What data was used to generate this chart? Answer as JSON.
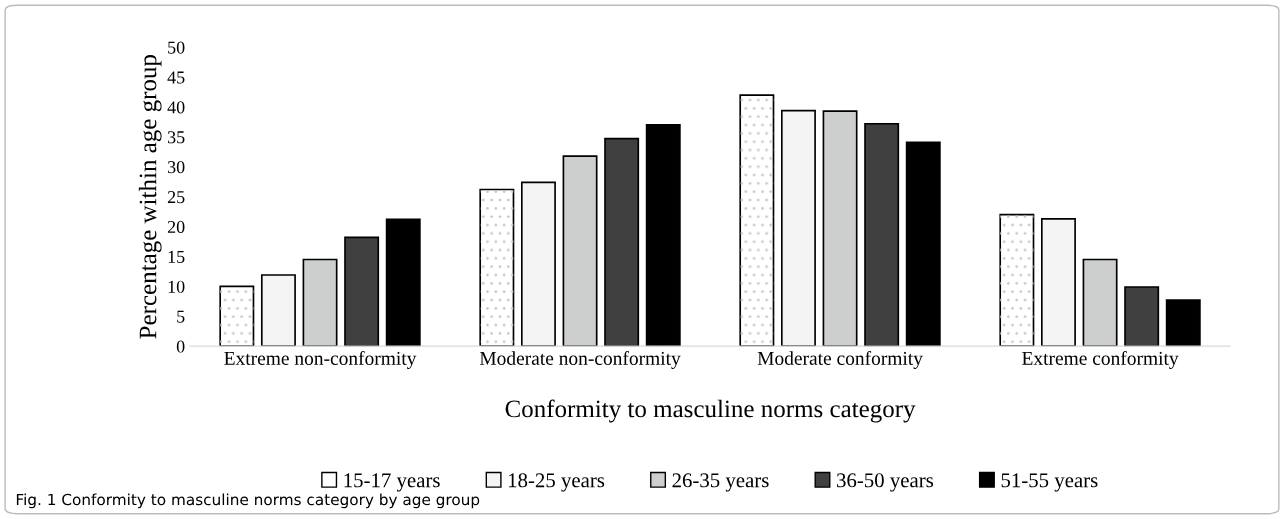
{
  "chart_data": {
    "type": "bar",
    "xlabel": "Conformity to masculine norms category",
    "ylabel": "Percentage within age group",
    "categories": [
      "Extreme non-conformity",
      "Moderate non-conformity",
      "Moderate conformity",
      "Extreme conformity"
    ],
    "series": [
      {
        "name": "15-17 years",
        "color": "#ffffff",
        "values": [
          10.0,
          26.2,
          42.0,
          22.0
        ]
      },
      {
        "name": "18-25 years",
        "color": "#f4f4f4",
        "values": [
          11.9,
          27.4,
          39.4,
          21.3
        ]
      },
      {
        "name": "26-35 years",
        "color": "#cdcfce",
        "values": [
          14.5,
          31.8,
          39.3,
          14.5
        ]
      },
      {
        "name": "36-50 years",
        "color": "#404040",
        "values": [
          18.2,
          34.7,
          37.2,
          9.9
        ]
      },
      {
        "name": "51-55 years",
        "color": "#000000",
        "values": [
          21.2,
          37.0,
          34.1,
          7.7
        ]
      }
    ],
    "ylim": [
      0,
      50
    ],
    "yticks": [
      0,
      5,
      10,
      15,
      20,
      25,
      30,
      35,
      40,
      45,
      50
    ],
    "grid": false,
    "legend": "bottom",
    "annotations": [
      "Fig. 1 Conformity to masculine norms category by age group"
    ]
  }
}
